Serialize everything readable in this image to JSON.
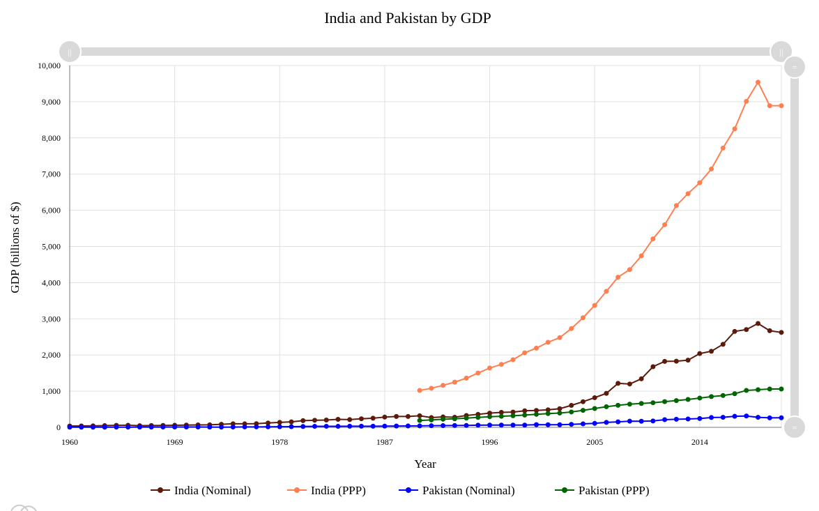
{
  "chart_data": {
    "type": "line",
    "title": "India and Pakistan by GDP",
    "xlabel": "Year",
    "ylabel": "GDP (billions of $)",
    "xlim": [
      1960,
      2021
    ],
    "ylim": [
      0,
      10000
    ],
    "x_ticks": [
      "1960",
      "1969",
      "1978",
      "1987",
      "1996",
      "2005",
      "2014"
    ],
    "y_ticks": [
      "0",
      "1,000",
      "2,000",
      "3,000",
      "4,000",
      "5,000",
      "6,000",
      "7,000",
      "8,000",
      "9,000",
      "10,000"
    ],
    "grid": true,
    "legend_position": "bottom",
    "series": [
      {
        "name": "India (Nominal)",
        "color": "#5c1a0b",
        "x": [
          1960,
          1961,
          1962,
          1963,
          1964,
          1965,
          1966,
          1967,
          1968,
          1969,
          1970,
          1971,
          1972,
          1973,
          1974,
          1975,
          1976,
          1977,
          1978,
          1979,
          1980,
          1981,
          1982,
          1983,
          1984,
          1985,
          1986,
          1987,
          1988,
          1989,
          1990,
          1991,
          1992,
          1993,
          1994,
          1995,
          1996,
          1997,
          1998,
          1999,
          2000,
          2001,
          2002,
          2003,
          2004,
          2005,
          2006,
          2007,
          2008,
          2009,
          2010,
          2011,
          2012,
          2013,
          2014,
          2015,
          2016,
          2017,
          2018,
          2019,
          2020,
          2021
        ],
        "y": [
          37,
          39,
          42,
          48,
          56,
          59,
          46,
          50,
          53,
          58,
          62,
          67,
          71,
          85,
          99,
          98,
          102,
          121,
          137,
          152,
          186,
          196,
          203,
          222,
          215,
          237,
          253,
          283,
          301,
          301,
          321,
          270,
          288,
          279,
          327,
          360,
          392,
          415,
          421,
          458,
          468,
          485,
          515,
          607,
          709,
          820,
          940,
          1216,
          1198,
          1341,
          1676,
          1823,
          1828,
          1857,
          2039,
          2103,
          2295,
          2651,
          2703,
          2871,
          2671,
          2624
        ]
      },
      {
        "name": "India (PPP)",
        "color": "#ff7f50",
        "x": [
          1990,
          1991,
          1992,
          1993,
          1994,
          1995,
          1996,
          1997,
          1998,
          1999,
          2000,
          2001,
          2002,
          2003,
          2004,
          2005,
          2006,
          2007,
          2008,
          2009,
          2010,
          2011,
          2012,
          2013,
          2014,
          2015,
          2016,
          2017,
          2018,
          2019,
          2020,
          2021
        ],
        "y": [
          1020,
          1080,
          1160,
          1250,
          1360,
          1500,
          1640,
          1740,
          1870,
          2060,
          2190,
          2350,
          2480,
          2730,
          3030,
          3370,
          3760,
          4150,
          4360,
          4740,
          5210,
          5600,
          6130,
          6460,
          6760,
          7140,
          7720,
          8250,
          9010,
          9540,
          8890,
          8890
        ]
      },
      {
        "name": "Pakistan (Nominal)",
        "color": "#0000ff",
        "x": [
          1960,
          1961,
          1962,
          1963,
          1964,
          1965,
          1966,
          1967,
          1968,
          1969,
          1970,
          1971,
          1972,
          1973,
          1974,
          1975,
          1976,
          1977,
          1978,
          1979,
          1980,
          1981,
          1982,
          1983,
          1984,
          1985,
          1986,
          1987,
          1988,
          1989,
          1990,
          1991,
          1992,
          1993,
          1994,
          1995,
          1996,
          1997,
          1998,
          1999,
          2000,
          2001,
          2002,
          2003,
          2004,
          2005,
          2006,
          2007,
          2008,
          2009,
          2010,
          2011,
          2012,
          2013,
          2014,
          2015,
          2016,
          2017,
          2018,
          2019,
          2020,
          2021
        ],
        "y": [
          4,
          4,
          5,
          5,
          6,
          6,
          7,
          7,
          8,
          9,
          10,
          10,
          7,
          6,
          8,
          11,
          13,
          15,
          17,
          19,
          24,
          28,
          30,
          28,
          31,
          31,
          31,
          33,
          36,
          38,
          40,
          45,
          48,
          51,
          52,
          60,
          63,
          62,
          62,
          62,
          74,
          72,
          72,
          83,
          97,
          110,
          137,
          152,
          170,
          168,
          177,
          213,
          224,
          231,
          244,
          271,
          278,
          305,
          314,
          278,
          263,
          264
        ]
      },
      {
        "name": "Pakistan (PPP)",
        "color": "#006400",
        "x": [
          1990,
          1991,
          1992,
          1993,
          1994,
          1995,
          1996,
          1997,
          1998,
          1999,
          2000,
          2001,
          2002,
          2003,
          2004,
          2005,
          2006,
          2007,
          2008,
          2009,
          2010,
          2011,
          2012,
          2013,
          2014,
          2015,
          2016,
          2017,
          2018,
          2019,
          2020,
          2021
        ],
        "y": [
          190,
          205,
          225,
          235,
          255,
          275,
          295,
          305,
          320,
          340,
          360,
          380,
          395,
          425,
          470,
          520,
          570,
          610,
          640,
          660,
          680,
          710,
          740,
          770,
          810,
          850,
          880,
          930,
          1020,
          1040,
          1060,
          1060
        ]
      }
    ]
  }
}
